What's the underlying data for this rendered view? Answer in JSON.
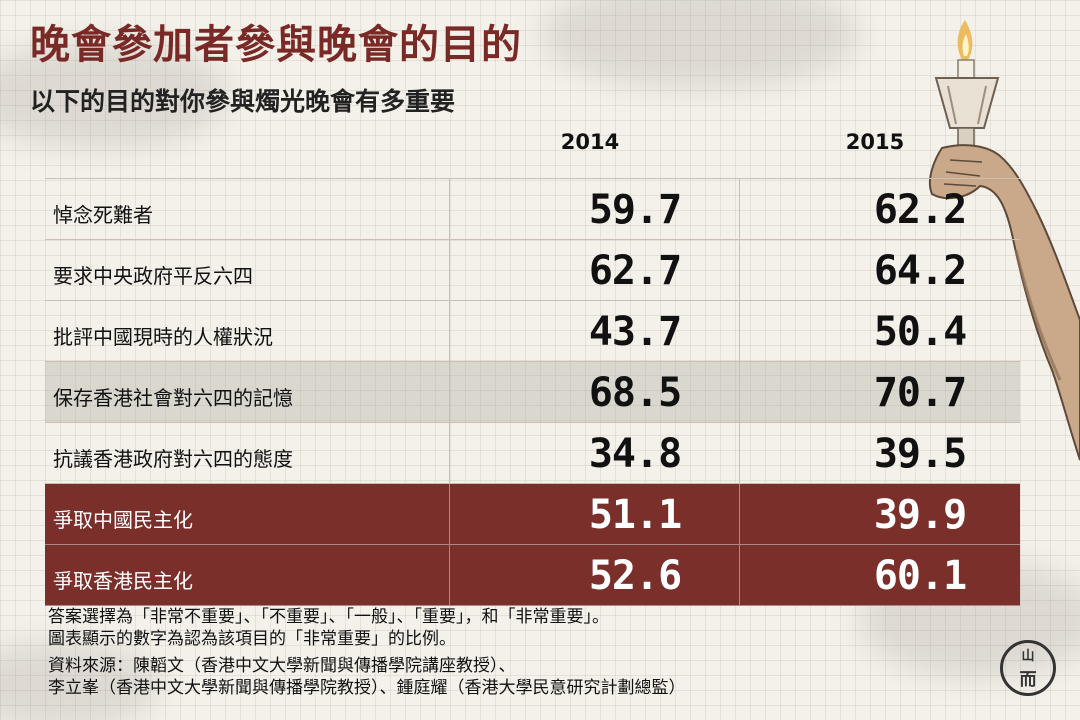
{
  "title": "晚會參加者參與晚會的目的",
  "subtitle": "以下的目的對你參與燭光晚會有多重要",
  "chart_data": {
    "type": "table",
    "columns": [
      "2014",
      "2015"
    ],
    "rows": [
      {
        "label": "悼念死難者",
        "values": [
          "59.7",
          "62.2"
        ]
      },
      {
        "label": "要求中央政府平反六四",
        "values": [
          "62.7",
          "64.2"
        ]
      },
      {
        "label": "批評中國現時的人權狀況",
        "values": [
          "43.7",
          "50.4"
        ]
      },
      {
        "label": "保存香港社會對六四的記憶",
        "values": [
          "68.5",
          "70.7"
        ]
      },
      {
        "label": "抗議香港政府對六四的態度",
        "values": [
          "34.8",
          "39.5"
        ]
      },
      {
        "label": "爭取中國民主化",
        "values": [
          "51.1",
          "39.9"
        ]
      },
      {
        "label": "爭取香港民主化",
        "values": [
          "52.6",
          "60.1"
        ]
      }
    ]
  },
  "notes": {
    "line1": "答案選擇為「非常不重要」、「不重要」、「一般」、「重要」，和「非常重要」。",
    "line2": "圖表顯示的數字為認為該項目的「非常重要」的比例。",
    "line3": "資料來源：陳韜文（香港中文大學新聞與傳播學院講座教授）、",
    "line4": "李立峯（香港中文大學新聞與傳播學院教授）、鍾庭耀（香港大學民意研究計劃總監）"
  },
  "colors": {
    "title": "#7a2a26",
    "highlight_rows": "#7a2f2b"
  }
}
